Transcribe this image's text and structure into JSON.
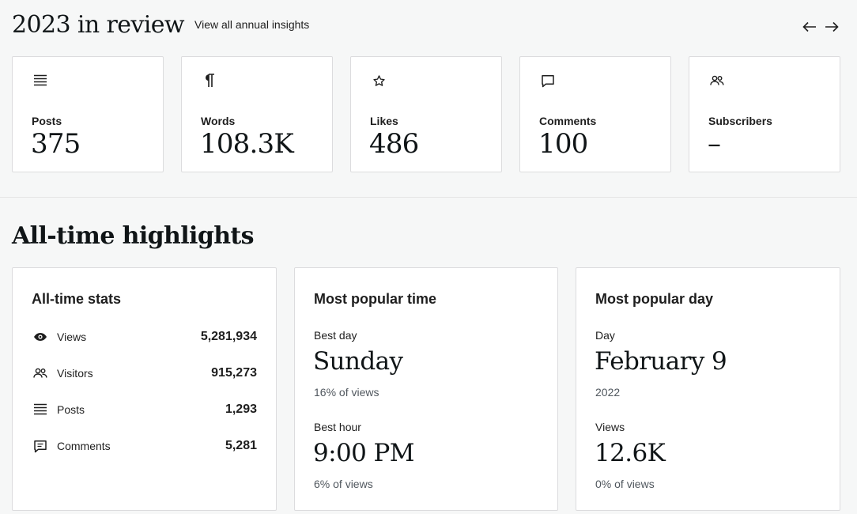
{
  "annual": {
    "title": "2023 in review",
    "link": "View all annual insights",
    "prev_icon": "arrow-left-icon",
    "next_icon": "arrow-right-icon",
    "cards": [
      {
        "icon": "posts-list-icon",
        "label": "Posts",
        "value": "375"
      },
      {
        "icon": "paragraph-icon",
        "label": "Words",
        "value": "108.3K"
      },
      {
        "icon": "star-icon",
        "label": "Likes",
        "value": "486"
      },
      {
        "icon": "comment-icon",
        "label": "Comments",
        "value": "100"
      },
      {
        "icon": "people-icon",
        "label": "Subscribers",
        "value": "–"
      }
    ]
  },
  "highlights": {
    "title": "All-time highlights",
    "stats": {
      "title": "All-time stats",
      "rows": [
        {
          "icon": "eye-icon",
          "label": "Views",
          "value": "5,281,934"
        },
        {
          "icon": "people-icon",
          "label": "Visitors",
          "value": "915,273"
        },
        {
          "icon": "posts-list-icon",
          "label": "Posts",
          "value": "1,293"
        },
        {
          "icon": "comment-icon",
          "label": "Comments",
          "value": "5,281"
        }
      ]
    },
    "popular_time": {
      "title": "Most popular time",
      "day_label": "Best day",
      "day_value": "Sunday",
      "day_sub": "16% of views",
      "hour_label": "Best hour",
      "hour_value": "9:00 PM",
      "hour_sub": "6% of views"
    },
    "popular_day": {
      "title": "Most popular day",
      "day_label": "Day",
      "day_value": "February 9",
      "day_sub": "2022",
      "views_label": "Views",
      "views_value": "12.6K",
      "views_sub": "0% of views"
    }
  }
}
